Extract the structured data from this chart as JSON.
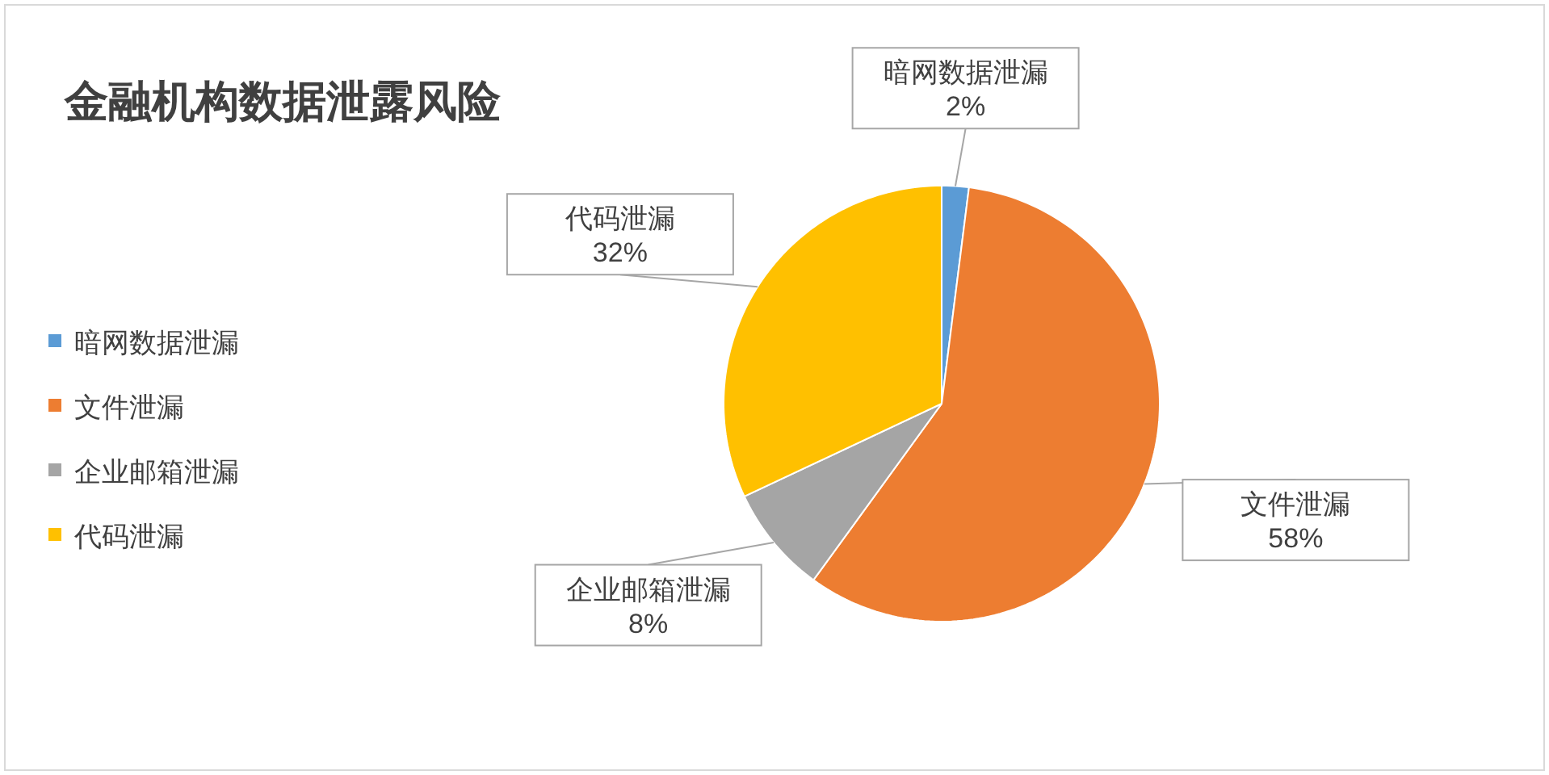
{
  "chart_data": {
    "type": "pie",
    "title": "金融机构数据泄露风险",
    "categories": [
      "暗网数据泄漏",
      "文件泄漏",
      "企业邮箱泄漏",
      "代码泄漏"
    ],
    "values": [
      2,
      58,
      8,
      32
    ],
    "colors": [
      "#5b9bd5",
      "#ed7d31",
      "#a5a5a5",
      "#ffc000"
    ],
    "value_labels": [
      "2%",
      "58%",
      "8%",
      "32%"
    ],
    "legend": "left"
  }
}
